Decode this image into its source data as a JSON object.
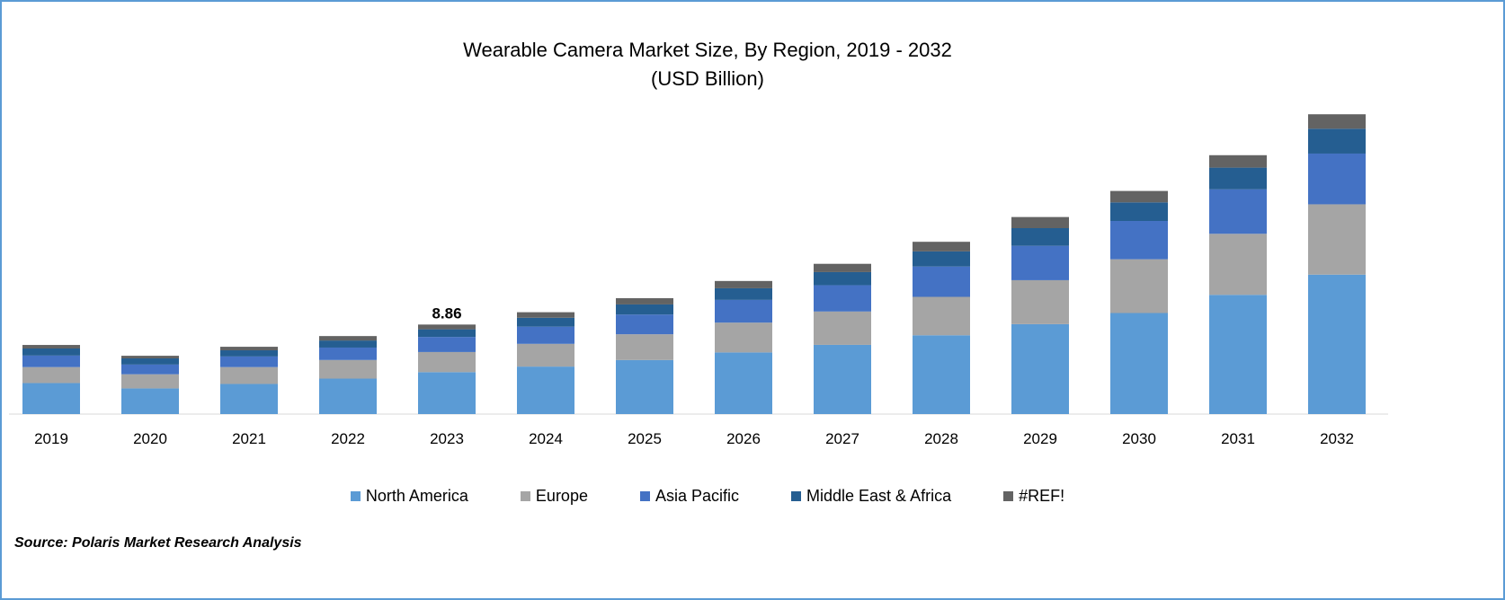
{
  "chart_data": {
    "type": "bar",
    "stacked": true,
    "title": "Wearable Camera Market Size, By Region, 2019 - 2032",
    "subtitle": "(USD Billion)",
    "xlabel": "",
    "ylabel": "",
    "grid": false,
    "legend_position": "bottom",
    "categories": [
      "2019",
      "2020",
      "2021",
      "2022",
      "2023",
      "2024",
      "2025",
      "2026",
      "2027",
      "2028",
      "2029",
      "2030",
      "2031",
      "2032"
    ],
    "series": [
      {
        "name": "North America",
        "color": "#5b9bd5",
        "values": [
          3.07,
          2.54,
          2.98,
          3.51,
          4.15,
          4.7,
          5.35,
          6.1,
          6.85,
          7.8,
          8.9,
          10.0,
          11.8,
          13.8
        ]
      },
      {
        "name": "Europe",
        "color": "#a5a5a5",
        "values": [
          1.58,
          1.4,
          1.67,
          1.84,
          1.99,
          2.25,
          2.55,
          2.95,
          3.3,
          3.8,
          4.35,
          5.32,
          6.04,
          6.96
        ]
      },
      {
        "name": "Asia Pacific",
        "color": "#4472c4",
        "values": [
          1.14,
          0.96,
          1.05,
          1.23,
          1.49,
          1.7,
          1.95,
          2.25,
          2.6,
          3.0,
          3.4,
          3.79,
          4.4,
          5.02
        ]
      },
      {
        "name": "Middle East & Africa",
        "color": "#255e91",
        "values": [
          0.7,
          0.61,
          0.61,
          0.7,
          0.76,
          0.88,
          1.0,
          1.15,
          1.3,
          1.5,
          1.75,
          1.84,
          2.15,
          2.46
        ]
      },
      {
        "name": "#REF!",
        "color": "#636363",
        "values": [
          0.35,
          0.26,
          0.35,
          0.44,
          0.47,
          0.55,
          0.62,
          0.72,
          0.82,
          0.95,
          1.1,
          1.13,
          1.23,
          1.43
        ]
      }
    ],
    "annotations": [
      {
        "category": "2023",
        "text": "8.86"
      }
    ]
  },
  "source": "Source: Polaris Market Research Analysis"
}
